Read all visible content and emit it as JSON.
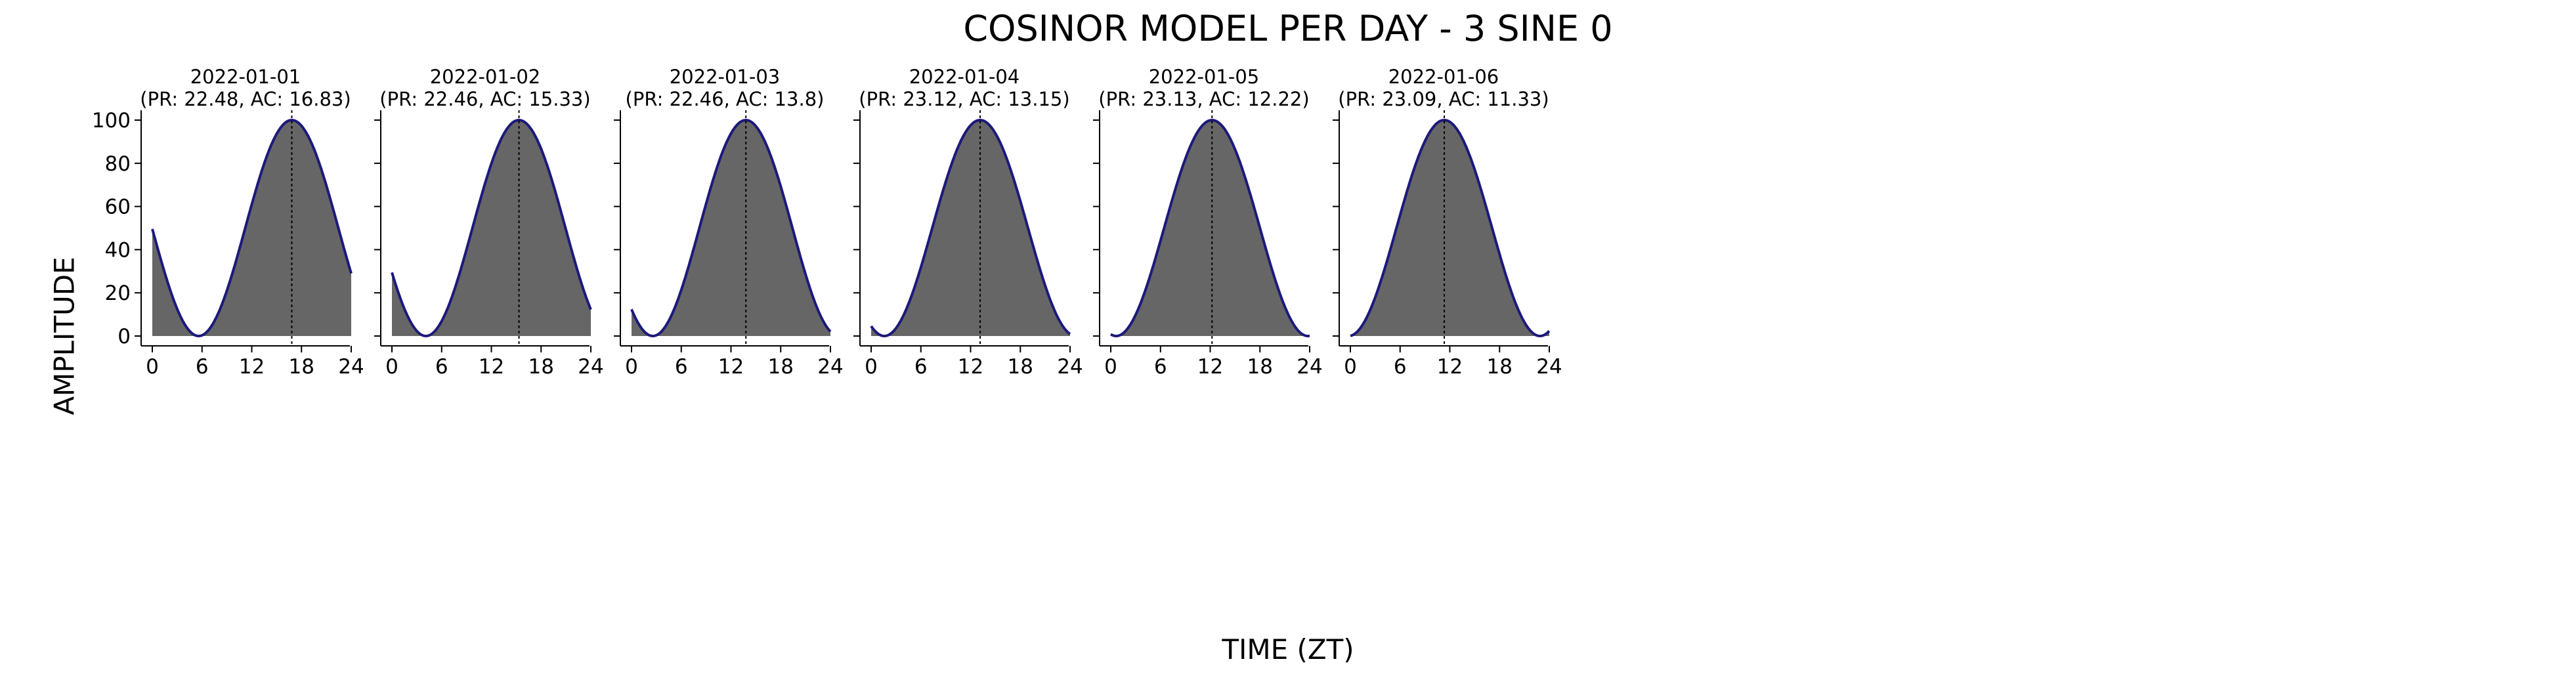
{
  "figure": {
    "title": "COSINOR MODEL PER DAY - 3 SINE 0",
    "xlabel": "TIME (ZT)",
    "ylabel": "AMPLITUDE"
  },
  "colors": {
    "fill": "#666666",
    "line": "#1c1a7a",
    "acrophase_line": "#000000",
    "axis": "#000000"
  },
  "chart_data": {
    "type": "area",
    "xlim": [
      0,
      24
    ],
    "ylim": [
      0,
      100
    ],
    "xticks": [
      0,
      6,
      12,
      18,
      24
    ],
    "yticks": [
      0,
      20,
      40,
      60,
      80,
      100
    ],
    "grid": false,
    "legend": "none",
    "panels": [
      {
        "date": "2022-01-01",
        "subtitle": "(PR: 22.48, AC: 16.83)",
        "period": 22.48,
        "acrophase": 16.83
      },
      {
        "date": "2022-01-02",
        "subtitle": "(PR: 22.46, AC: 15.33)",
        "period": 22.46,
        "acrophase": 15.33
      },
      {
        "date": "2022-01-03",
        "subtitle": "(PR: 22.46, AC: 13.8)",
        "period": 22.46,
        "acrophase": 13.8
      },
      {
        "date": "2022-01-04",
        "subtitle": "(PR: 23.12, AC: 13.15)",
        "period": 23.12,
        "acrophase": 13.15
      },
      {
        "date": "2022-01-05",
        "subtitle": "(PR: 23.13, AC: 12.22)",
        "period": 23.13,
        "acrophase": 12.22
      },
      {
        "date": "2022-01-06",
        "subtitle": "(PR: 23.09, AC: 11.33)",
        "period": 23.09,
        "acrophase": 11.33
      }
    ]
  }
}
